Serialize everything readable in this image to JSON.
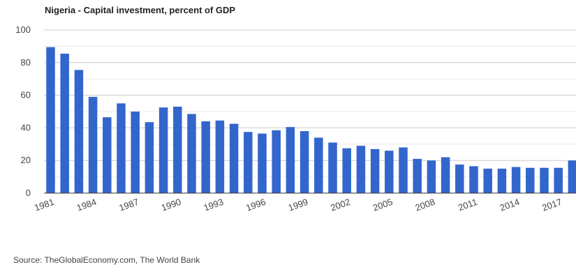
{
  "chart_data": {
    "type": "bar",
    "title": "Nigeria - Capital investment, percent of GDP",
    "xlabel": "",
    "ylabel": "",
    "ylim": [
      0,
      100
    ],
    "yticks": [
      0,
      20,
      40,
      60,
      80,
      100
    ],
    "x_tick_labels": [
      "1981",
      "1984",
      "1987",
      "1990",
      "1993",
      "1996",
      "1999",
      "2002",
      "2005",
      "2008",
      "2011",
      "2014",
      "2017"
    ],
    "categories": [
      "1981",
      "1982",
      "1983",
      "1984",
      "1985",
      "1986",
      "1987",
      "1988",
      "1989",
      "1990",
      "1991",
      "1992",
      "1993",
      "1994",
      "1995",
      "1996",
      "1997",
      "1998",
      "1999",
      "2000",
      "2001",
      "2002",
      "2003",
      "2004",
      "2005",
      "2006",
      "2007",
      "2008",
      "2009",
      "2010",
      "2011",
      "2012",
      "2013",
      "2014",
      "2015",
      "2016",
      "2017",
      "2018"
    ],
    "values": [
      89.5,
      85.5,
      75.5,
      59,
      46.5,
      55,
      50,
      43.5,
      52.5,
      53,
      48.5,
      44,
      44.5,
      42.5,
      37.5,
      36.5,
      38.5,
      40.5,
      38,
      34,
      31,
      27.5,
      29,
      27,
      26,
      28,
      21,
      20,
      22,
      17.5,
      16.5,
      15,
      15,
      16,
      15.5,
      15.5,
      15.5,
      20
    ],
    "bar_color": "#3366cc",
    "grid": true,
    "legend": "none",
    "source": "Source: TheGlobalEconomy.com, The World Bank"
  }
}
